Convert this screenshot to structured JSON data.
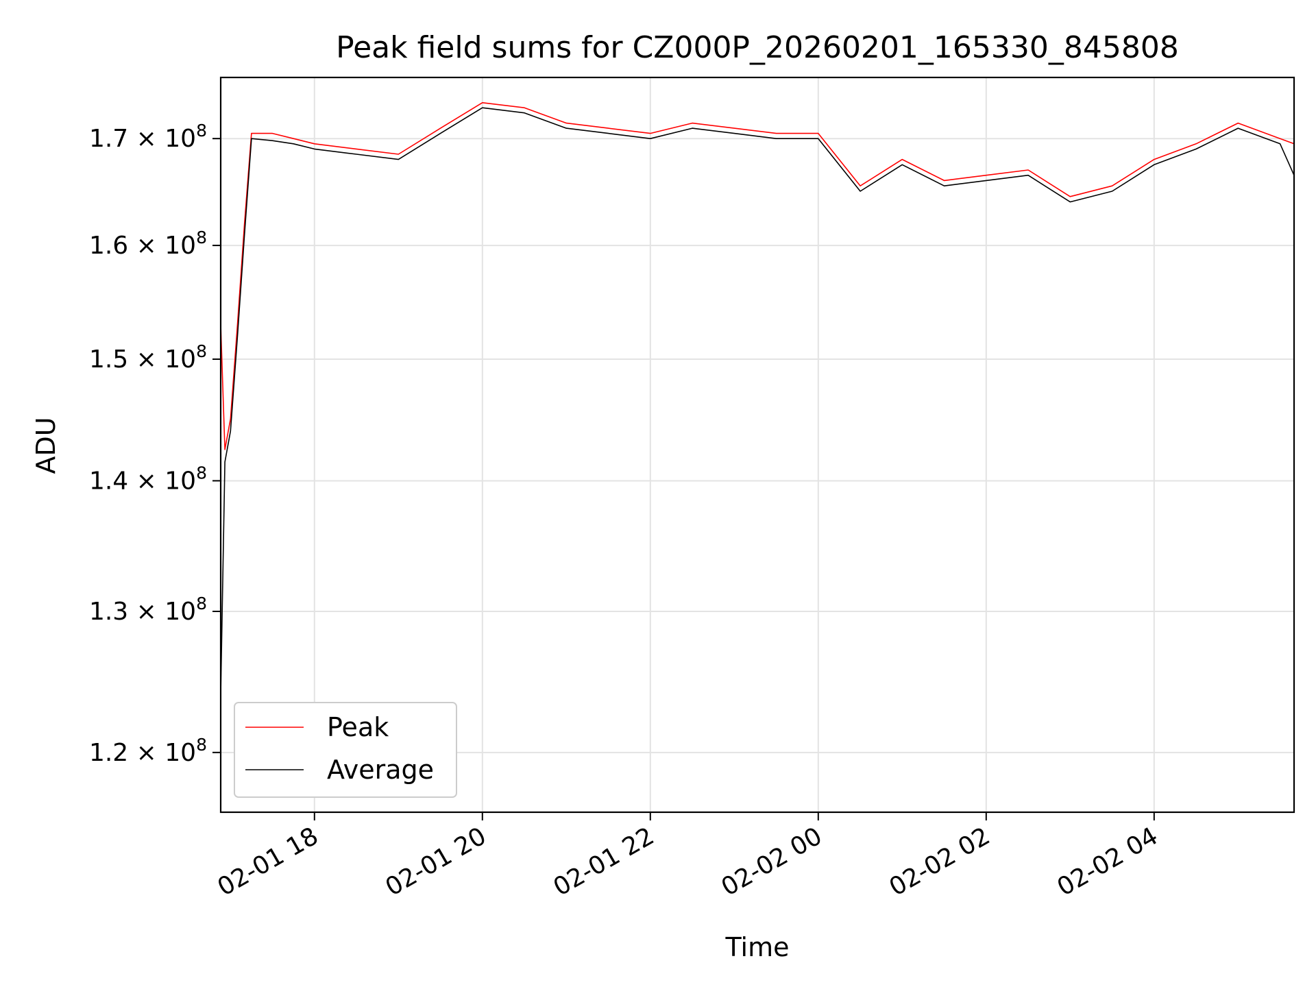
{
  "chart_data": {
    "type": "line",
    "title": "Peak field sums for CZ000P_20260201_165330_845808",
    "xlabel": "Time",
    "ylabel": "ADU",
    "y_scale": "log",
    "xlim": [
      "2026-02-01 16:53",
      "2026-02-02 05:40"
    ],
    "ylim": [
      116000000,
      176000000
    ],
    "grid": true,
    "legend_position": "lower-left",
    "x_ticks": [
      {
        "value": "2026-02-01 18:00",
        "label": "02-01 18"
      },
      {
        "value": "2026-02-01 20:00",
        "label": "02-01 20"
      },
      {
        "value": "2026-02-01 22:00",
        "label": "02-01 22"
      },
      {
        "value": "2026-02-02 00:00",
        "label": "02-02 00"
      },
      {
        "value": "2026-02-02 02:00",
        "label": "02-02 02"
      },
      {
        "value": "2026-02-02 04:00",
        "label": "02-02 04"
      }
    ],
    "y_ticks": [
      {
        "value": 120000000,
        "mantissa": "1.2",
        "base": "10",
        "exponent": "8"
      },
      {
        "value": 130000000,
        "mantissa": "1.3",
        "base": "10",
        "exponent": "8"
      },
      {
        "value": 140000000,
        "mantissa": "1.4",
        "base": "10",
        "exponent": "8"
      },
      {
        "value": 150000000,
        "mantissa": "1.5",
        "base": "10",
        "exponent": "8"
      },
      {
        "value": 160000000,
        "mantissa": "1.6",
        "base": "10",
        "exponent": "8"
      },
      {
        "value": 170000000,
        "mantissa": "1.7",
        "base": "10",
        "exponent": "8"
      }
    ],
    "x": [
      "2026-02-01 16:53",
      "2026-02-01 16:56",
      "2026-02-01 17:00",
      "2026-02-01 17:05",
      "2026-02-01 17:10",
      "2026-02-01 17:15",
      "2026-02-01 17:30",
      "2026-02-01 17:45",
      "2026-02-01 18:00",
      "2026-02-01 18:30",
      "2026-02-01 19:00",
      "2026-02-01 19:30",
      "2026-02-01 20:00",
      "2026-02-01 20:30",
      "2026-02-01 21:00",
      "2026-02-01 21:30",
      "2026-02-01 22:00",
      "2026-02-01 22:30",
      "2026-02-01 23:00",
      "2026-02-01 23:30",
      "2026-02-02 00:00",
      "2026-02-02 00:30",
      "2026-02-02 01:00",
      "2026-02-02 01:30",
      "2026-02-02 02:00",
      "2026-02-02 02:30",
      "2026-02-02 03:00",
      "2026-02-02 03:30",
      "2026-02-02 04:00",
      "2026-02-02 04:30",
      "2026-02-02 05:00",
      "2026-02-02 05:30",
      "2026-02-02 05:40"
    ],
    "series": [
      {
        "name": "Peak",
        "color": "#ff0000",
        "values": [
          153000000,
          142500000,
          145000000,
          153000000,
          162000000,
          170500000,
          170500000,
          170000000,
          169500000,
          169000000,
          168500000,
          171000000,
          173500000,
          173000000,
          171500000,
          171000000,
          170500000,
          171500000,
          171000000,
          170500000,
          170500000,
          165500000,
          168000000,
          166000000,
          166500000,
          167000000,
          164500000,
          165500000,
          168000000,
          169500000,
          171500000,
          170000000,
          169500000
        ]
      },
      {
        "name": "Average",
        "color": "#000000",
        "values": [
          124000000,
          141500000,
          144000000,
          152000000,
          161000000,
          170000000,
          169800000,
          169500000,
          169000000,
          168500000,
          168000000,
          170500000,
          173000000,
          172500000,
          171000000,
          170500000,
          170000000,
          171000000,
          170500000,
          170000000,
          170000000,
          165000000,
          167500000,
          165500000,
          166000000,
          166500000,
          164000000,
          165000000,
          167500000,
          169000000,
          171000000,
          169500000,
          166500000
        ]
      }
    ]
  }
}
